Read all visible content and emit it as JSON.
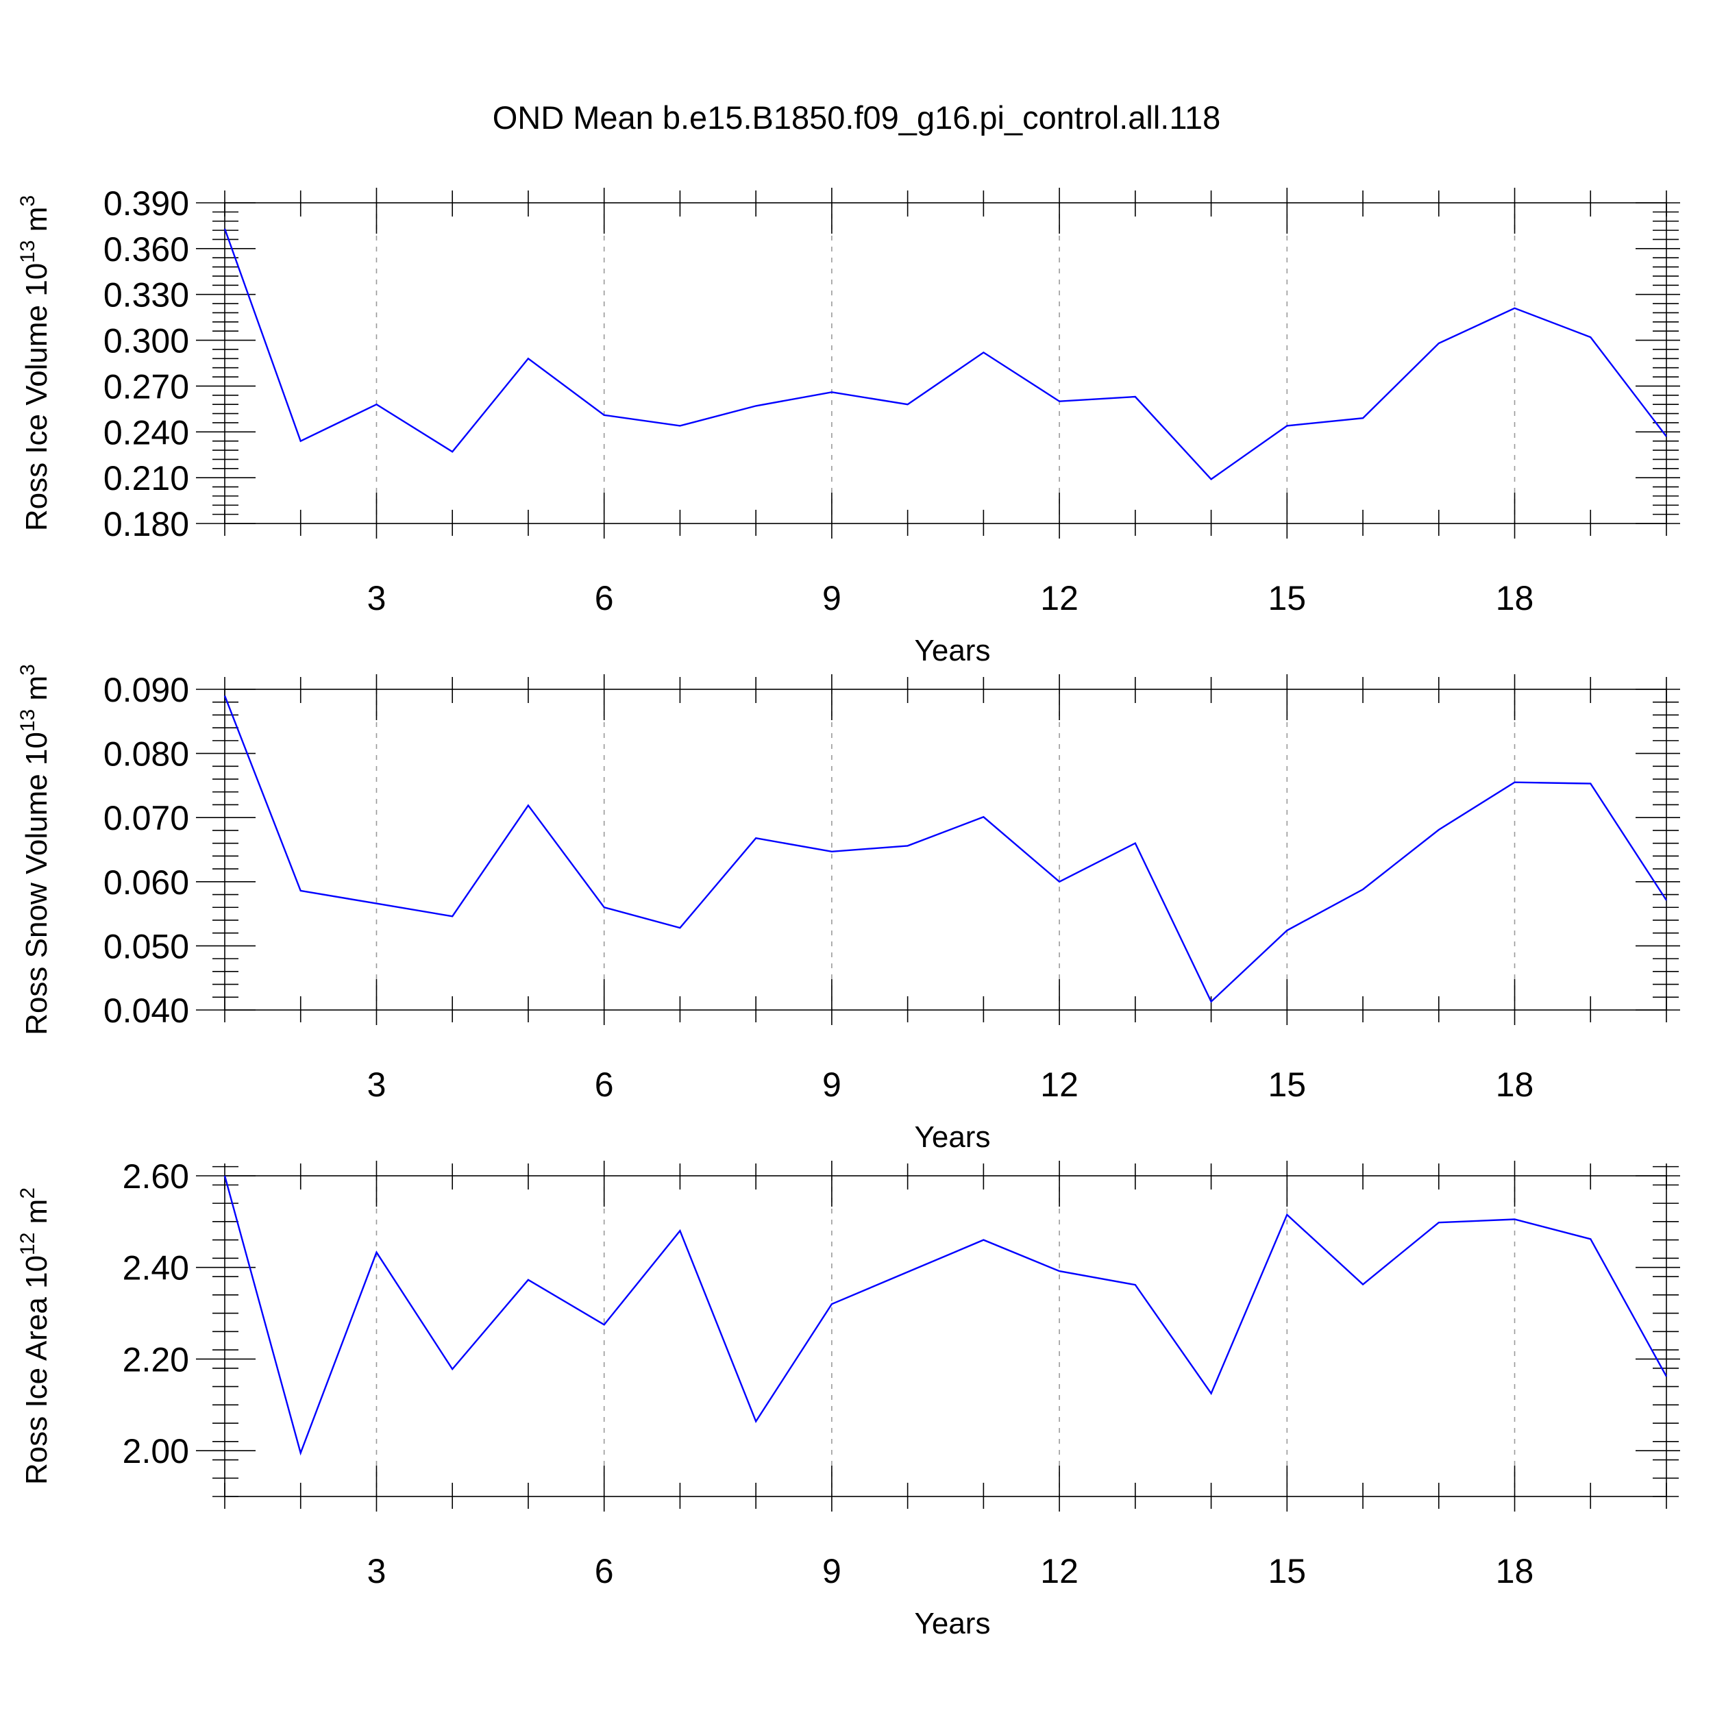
{
  "title": "OND Mean b.e15.B1850.f09_g16.pi_control.all.118",
  "chart_data": [
    {
      "type": "line",
      "xlabel": "Years",
      "ylabel": "Ross Ice Volume 10",
      "ylabel_sup": "13",
      "ylabel_unit": "m",
      "ylabel_unit_sup": "3",
      "x": [
        1,
        2,
        3,
        4,
        5,
        6,
        7,
        8,
        9,
        10,
        11,
        12,
        13,
        14,
        15,
        16,
        17,
        18,
        19,
        20
      ],
      "xlim": [
        1,
        20
      ],
      "xticks": [
        3,
        6,
        9,
        12,
        15,
        18
      ],
      "xtick_labels": [
        "3",
        "6",
        "9",
        "12",
        "15",
        "18"
      ],
      "ylim": [
        0.18,
        0.39
      ],
      "yticks": [
        0.18,
        0.21,
        0.24,
        0.27,
        0.3,
        0.33,
        0.36,
        0.39
      ],
      "ytick_labels": [
        "0.180",
        "0.210",
        "0.240",
        "0.270",
        "0.300",
        "0.330",
        "0.360",
        "0.390"
      ],
      "yminor_step": 0.006,
      "grid": "vertical dashed at major x ticks",
      "series": [
        {
          "color": "#0000ff",
          "values": [
            0.373,
            0.234,
            0.258,
            0.227,
            0.288,
            0.251,
            0.244,
            0.257,
            0.266,
            0.258,
            0.292,
            0.26,
            0.263,
            0.209,
            0.244,
            0.249,
            0.298,
            0.321,
            0.302,
            0.237
          ]
        }
      ]
    },
    {
      "type": "line",
      "xlabel": "Years",
      "ylabel": "Ross Snow Volume 10",
      "ylabel_sup": "13",
      "ylabel_unit": "m",
      "ylabel_unit_sup": "3",
      "x": [
        1,
        2,
        3,
        4,
        5,
        6,
        7,
        8,
        9,
        10,
        11,
        12,
        13,
        14,
        15,
        16,
        17,
        18,
        19,
        20
      ],
      "xlim": [
        1,
        20
      ],
      "xticks": [
        3,
        6,
        9,
        12,
        15,
        18
      ],
      "xtick_labels": [
        "3",
        "6",
        "9",
        "12",
        "15",
        "18"
      ],
      "ylim": [
        0.04,
        0.09
      ],
      "yticks": [
        0.04,
        0.05,
        0.06,
        0.07,
        0.08,
        0.09
      ],
      "ytick_labels": [
        "0.040",
        "0.050",
        "0.060",
        "0.070",
        "0.080",
        "0.090"
      ],
      "yminor_step": 0.002,
      "grid": "vertical dashed at major x ticks",
      "series": [
        {
          "color": "#0000ff",
          "values": [
            0.089,
            0.0586,
            0.0566,
            0.0546,
            0.0719,
            0.056,
            0.0528,
            0.0668,
            0.0647,
            0.0656,
            0.0701,
            0.06,
            0.066,
            0.0413,
            0.0524,
            0.0588,
            0.0681,
            0.0755,
            0.0753,
            0.0571
          ]
        }
      ]
    },
    {
      "type": "line",
      "xlabel": "Years",
      "ylabel": "Ross Ice Area 10",
      "ylabel_sup": "12",
      "ylabel_unit": "m",
      "ylabel_unit_sup": "2",
      "x": [
        1,
        2,
        3,
        4,
        5,
        6,
        7,
        8,
        9,
        10,
        11,
        12,
        13,
        14,
        15,
        16,
        17,
        18,
        19,
        20
      ],
      "xlim": [
        1,
        20
      ],
      "xticks": [
        3,
        6,
        9,
        12,
        15,
        18
      ],
      "xtick_labels": [
        "3",
        "6",
        "9",
        "12",
        "15",
        "18"
      ],
      "ylim": [
        1.9,
        2.6
      ],
      "yticks": [
        2.0,
        2.2,
        2.4,
        2.6
      ],
      "ytick_labels": [
        "2.00",
        "2.20",
        "2.40",
        "2.60"
      ],
      "yminor_step": 0.04,
      "grid": "vertical dashed at major x ticks",
      "series": [
        {
          "color": "#0000ff",
          "values": [
            2.6,
            1.995,
            2.433,
            2.178,
            2.373,
            2.275,
            2.48,
            2.064,
            2.32,
            2.39,
            2.46,
            2.392,
            2.362,
            2.125,
            2.515,
            2.363,
            2.498,
            2.505,
            2.462,
            2.162
          ]
        }
      ]
    }
  ]
}
